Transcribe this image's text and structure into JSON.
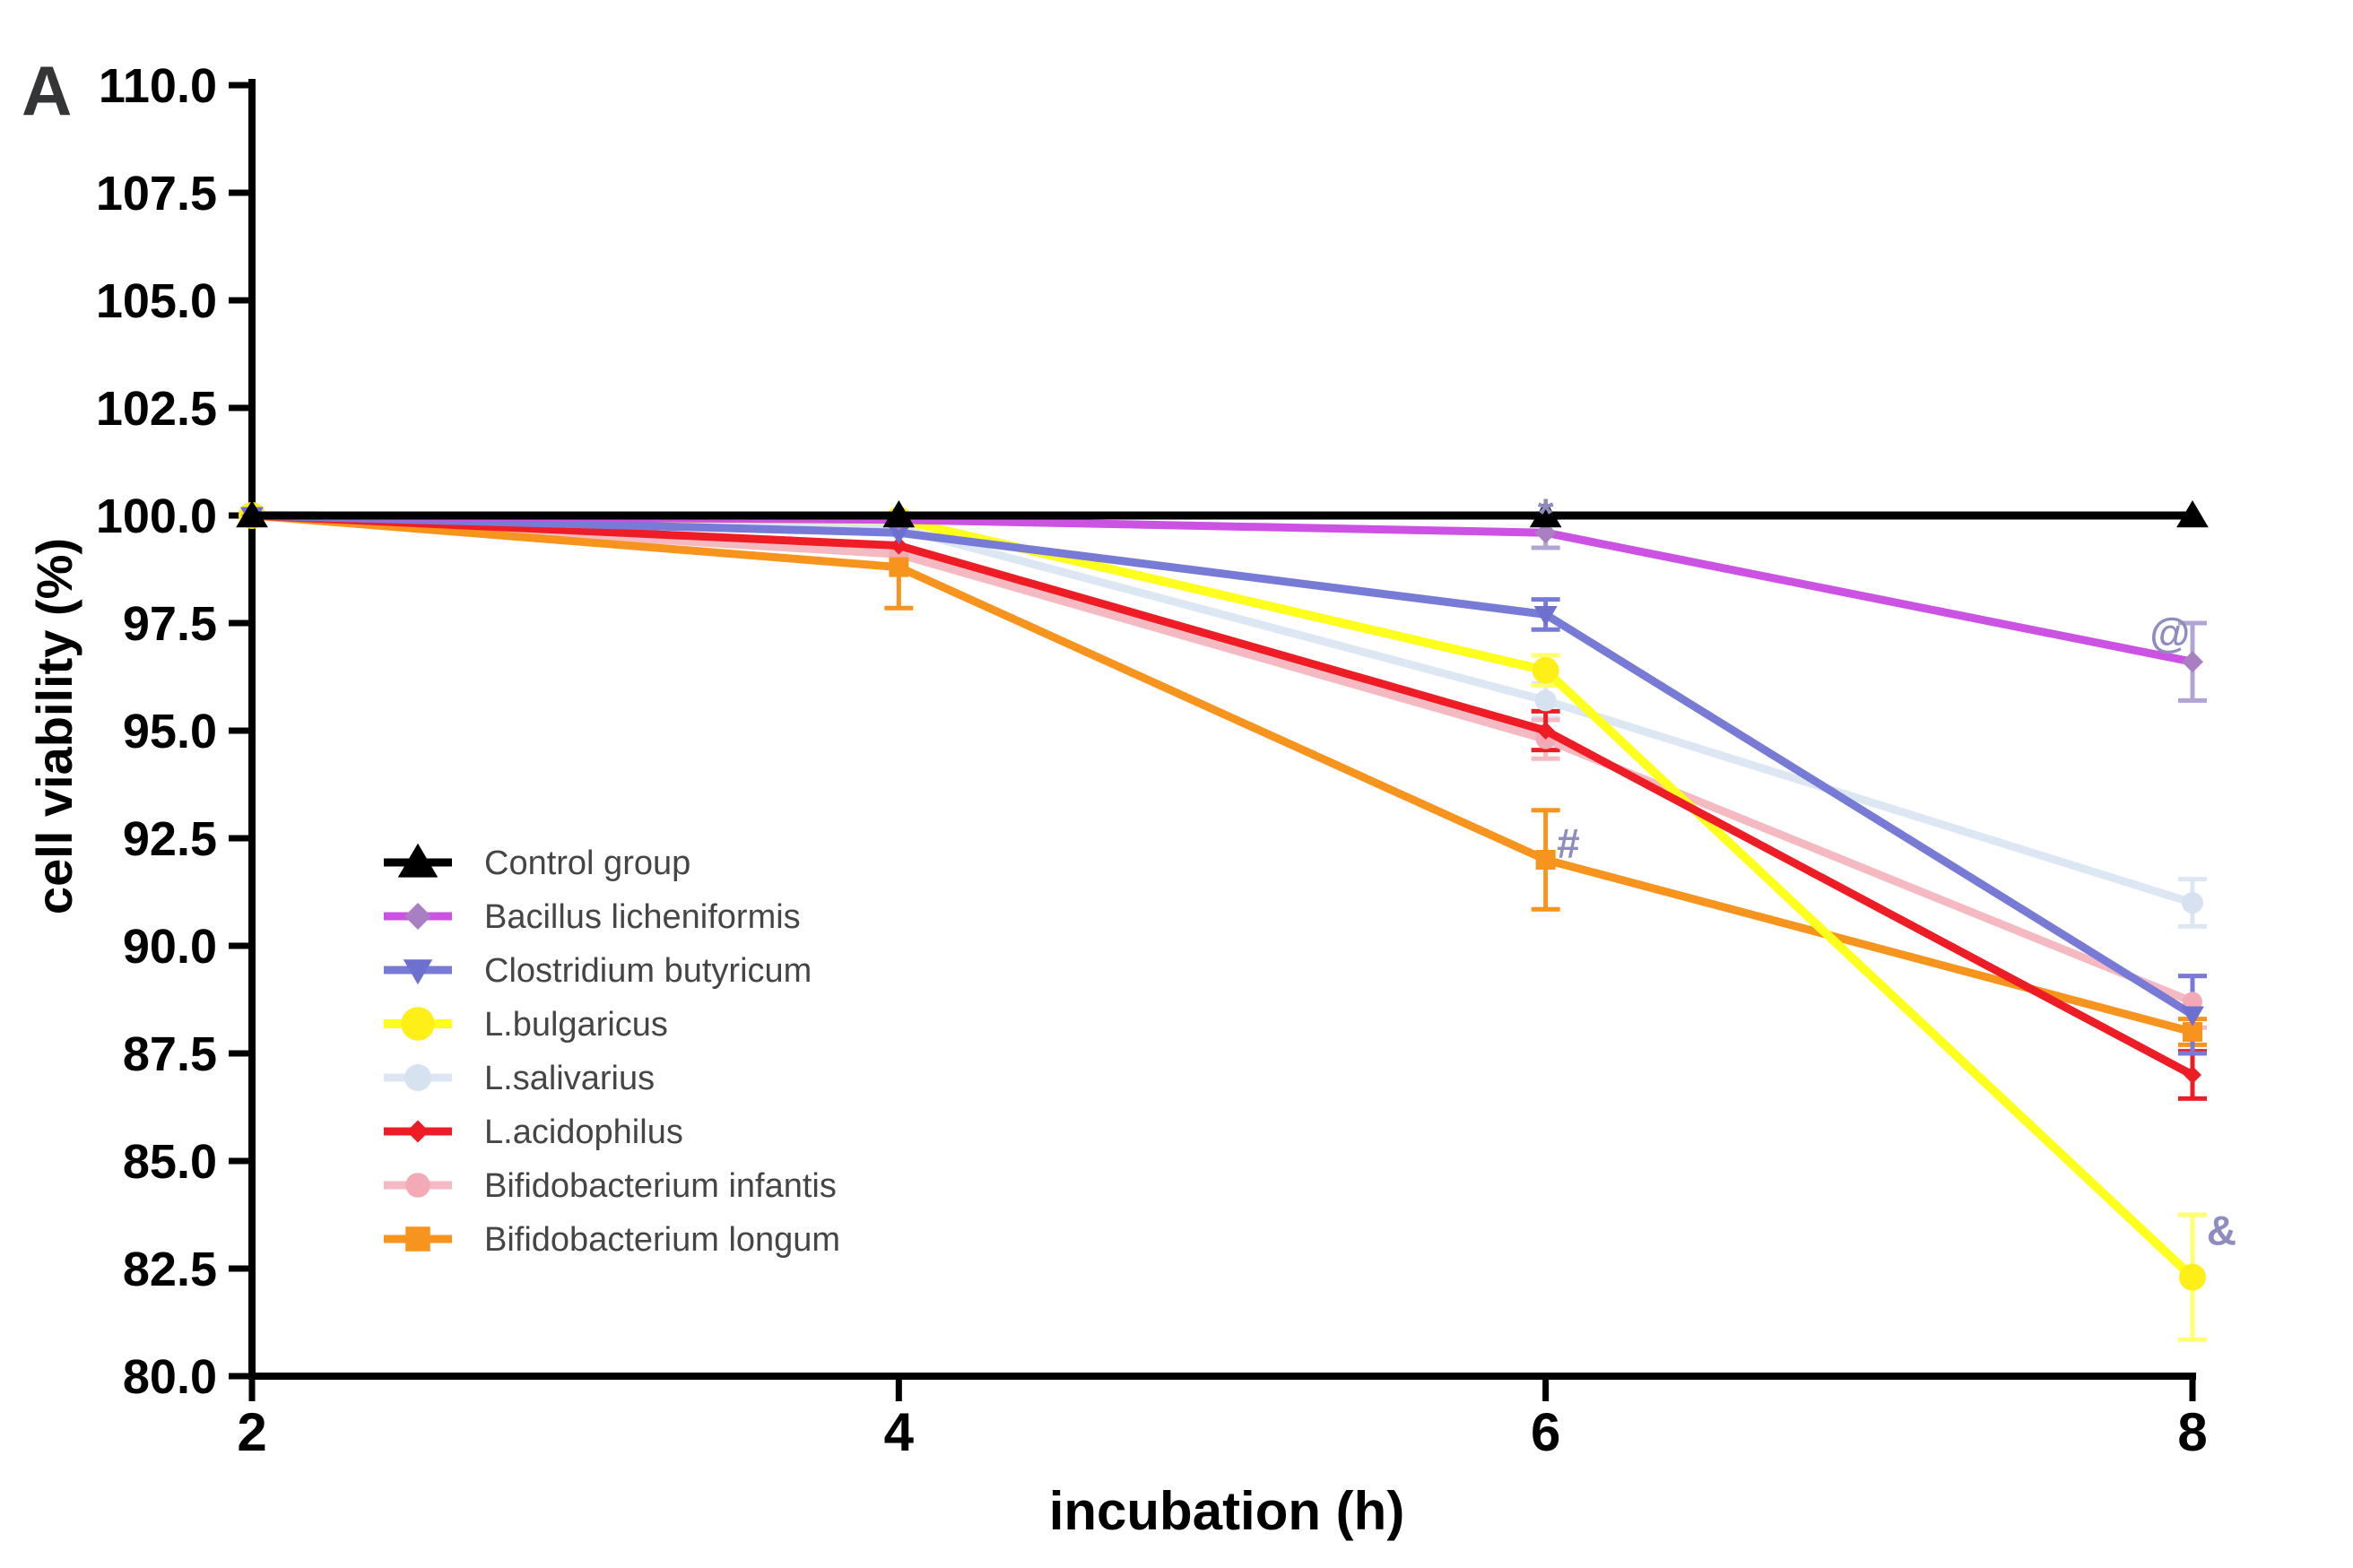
{
  "figure": {
    "panel_label": "A",
    "background": "#ffffff"
  },
  "chart_data": {
    "type": "line",
    "title": "",
    "xlabel": "incubation (h)",
    "ylabel": "cell viability (%)",
    "x": [
      2,
      4,
      6,
      8
    ],
    "xlim": [
      2,
      8
    ],
    "ylim": [
      80,
      110
    ],
    "ytick_step": 2.5,
    "ytick_decimals": 1,
    "xticks": [
      2,
      4,
      6,
      8
    ],
    "grid": false,
    "legend_position": "inside-lower-left",
    "axis_color": "#000000",
    "annotation_color": "#8f8dc0",
    "series": [
      {
        "name": "Control group",
        "color": "#000000",
        "marker": "triangle-up",
        "marker_color": "#000000",
        "marker_size": 17,
        "line_width": 9,
        "values": [
          100,
          100,
          100,
          100
        ],
        "errors": [
          null,
          null,
          null,
          null
        ]
      },
      {
        "name": "Bacillus licheniformis",
        "color": "#cb52e2",
        "marker": "diamond",
        "marker_color": "#a97fc4",
        "marker_size": 12,
        "line_width": 9,
        "values": [
          100,
          99.9,
          99.6,
          96.6
        ],
        "errors": [
          null,
          null,
          0.35,
          0.9
        ],
        "error_color": "#b2a4d4"
      },
      {
        "name": "Clostridium butyricum",
        "color": "#787bd6",
        "marker": "triangle-down",
        "marker_color": "#6d70cf",
        "marker_size": 13,
        "line_width": 9,
        "values": [
          100,
          99.6,
          97.7,
          88.4
        ],
        "errors": [
          null,
          null,
          0.35,
          0.9
        ]
      },
      {
        "name": "L.bulgaricus",
        "color": "#ffff1e",
        "marker": "circle",
        "marker_color": "#ffef18",
        "marker_size": 15,
        "line_width": 10,
        "values": [
          100,
          99.9,
          96.4,
          82.3
        ],
        "errors": [
          null,
          null,
          0.35,
          1.45
        ],
        "error_color": "#ffff70"
      },
      {
        "name": "L.salivarius",
        "color": "#dde7f4",
        "marker": "circle",
        "marker_color": "#d7e2f1",
        "marker_size": 12,
        "line_width": 9,
        "values": [
          100,
          99.7,
          95.7,
          91.0
        ],
        "errors": [
          null,
          null,
          0.4,
          0.55
        ]
      },
      {
        "name": "L.acidophilus",
        "color": "#ee1c25",
        "marker": "diamond",
        "marker_color": "#ee1c25",
        "marker_size": 10,
        "line_width": 9,
        "values": [
          100,
          99.3,
          95.0,
          87.0
        ],
        "errors": [
          null,
          null,
          0.45,
          0.55
        ]
      },
      {
        "name": "Bifidobacterium infantis",
        "color": "#f5b9c2",
        "marker": "circle",
        "marker_color": "#f3aab6",
        "marker_size": 11,
        "line_width": 9,
        "values": [
          100,
          99.1,
          94.8,
          88.7
        ],
        "errors": [
          null,
          null,
          0.45,
          0.6
        ]
      },
      {
        "name": "Bifidobacterium longum",
        "color": "#f7941d",
        "marker": "square",
        "marker_color": "#f7941d",
        "marker_size": 11,
        "line_width": 9,
        "values": [
          100,
          98.8,
          92.0,
          88.0
        ],
        "errors": [
          null,
          0.95,
          1.15,
          0.3
        ]
      }
    ],
    "annotations": [
      {
        "text": "*",
        "x": 6.0,
        "y": 99.72,
        "font_size": 62
      },
      {
        "text": "#",
        "x": 6.07,
        "y": 92.05,
        "font_size": 48
      },
      {
        "text": "@",
        "x": 7.93,
        "y": 96.95,
        "font_size": 46
      },
      {
        "text": "&",
        "x": 8.09,
        "y": 83.05,
        "font_size": 46
      }
    ]
  }
}
